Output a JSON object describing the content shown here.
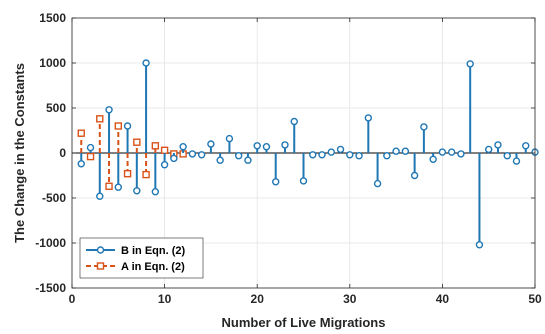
{
  "chart_data": {
    "type": "stem",
    "xlabel": "Number of Live Migrations",
    "ylabel": "The Change in the Constants",
    "xlim": [
      0,
      50
    ],
    "ylim": [
      -1500,
      1500
    ],
    "xticks": [
      0,
      10,
      20,
      30,
      40,
      50
    ],
    "yticks": [
      -1500,
      -1000,
      -500,
      0,
      500,
      1000,
      1500
    ],
    "grid": true,
    "legend_position": "bottom-left",
    "series": [
      {
        "name": "B in Eqn. (2)",
        "color": "#1f77b4",
        "marker": "circle",
        "line_style": "solid",
        "x": [
          1,
          2,
          3,
          4,
          5,
          6,
          7,
          8,
          9,
          10,
          11,
          12,
          13,
          14,
          15,
          16,
          17,
          18,
          19,
          20,
          21,
          22,
          23,
          24,
          25,
          26,
          27,
          28,
          29,
          30,
          31,
          32,
          33,
          34,
          35,
          36,
          37,
          38,
          39,
          40,
          41,
          42,
          43,
          44,
          45,
          46,
          47,
          48,
          49,
          50
        ],
        "values": [
          -120,
          60,
          -480,
          480,
          -380,
          300,
          -420,
          1000,
          -430,
          -130,
          -60,
          70,
          -10,
          -20,
          100,
          -80,
          160,
          -30,
          -80,
          80,
          70,
          -320,
          90,
          350,
          -310,
          -20,
          -20,
          10,
          40,
          -20,
          -30,
          390,
          -340,
          -30,
          20,
          20,
          -250,
          290,
          -70,
          10,
          10,
          -10,
          990,
          -1020,
          40,
          90,
          -30,
          -90,
          80,
          10
        ]
      },
      {
        "name": "A in Eqn. (2)",
        "color": "#d95319",
        "marker": "square",
        "line_style": "dashed",
        "x": [
          1,
          2,
          3,
          4,
          5,
          6,
          7,
          8,
          9,
          10,
          11,
          12
        ],
        "values": [
          220,
          -40,
          380,
          -370,
          300,
          -230,
          120,
          -240,
          80,
          30,
          -10,
          -10
        ]
      }
    ]
  }
}
